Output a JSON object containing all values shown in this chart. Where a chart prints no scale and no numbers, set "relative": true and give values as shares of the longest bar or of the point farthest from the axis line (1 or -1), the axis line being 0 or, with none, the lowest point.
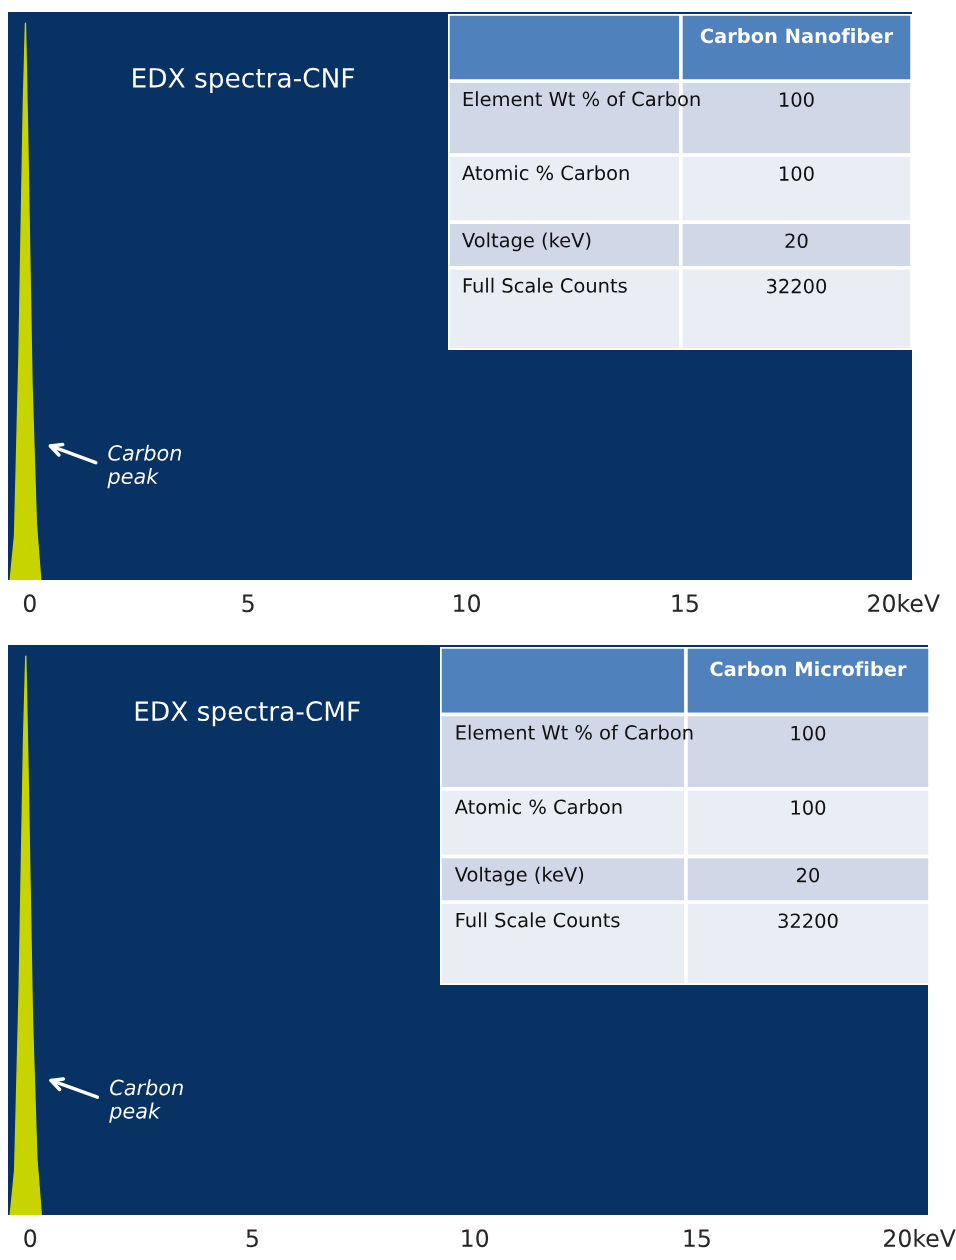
{
  "chart_data": [
    {
      "type": "area",
      "title": "EDX spectra-CNF",
      "relative": true,
      "tick_labels": "x",
      "grid": false,
      "xlim": [
        -0.5,
        20.2
      ],
      "xticks": [
        0,
        5,
        10,
        15,
        {
          "value": 20,
          "label": "20keV"
        }
      ],
      "series": [
        {
          "color": "#c8d400",
          "x": [
            -0.45,
            -0.35,
            -0.25,
            -0.15,
            -0.1,
            -0.05,
            0.05,
            0.15,
            0.25
          ],
          "values": [
            0,
            0.08,
            0.4,
            0.85,
            1,
            0.8,
            0.35,
            0.1,
            0
          ]
        }
      ],
      "annotations": [
        "Carbon\npeak"
      ]
    },
    {
      "type": "other",
      "annotations": [
        "Carbon Nanofiber",
        "Element Wt % of Carbon",
        "100",
        "Atomic % Carbon",
        "100",
        "Voltage (keV)",
        "20",
        "Full Scale Counts",
        "32200"
      ]
    },
    {
      "type": "area",
      "title": "EDX spectra-CMF",
      "relative": true,
      "tick_labels": "x",
      "grid": false,
      "xlim": [
        -0.5,
        20.2
      ],
      "xticks": [
        0,
        5,
        10,
        15,
        {
          "value": 20,
          "label": "20keV"
        }
      ],
      "series": [
        {
          "color": "#c8d400",
          "x": [
            -0.45,
            -0.35,
            -0.25,
            -0.15,
            -0.1,
            -0.05,
            0.05,
            0.15,
            0.25
          ],
          "values": [
            0,
            0.08,
            0.4,
            0.85,
            1,
            0.8,
            0.35,
            0.1,
            0
          ]
        }
      ],
      "annotations": [
        "Carbon\npeak"
      ]
    },
    {
      "type": "other",
      "annotations": [
        "Carbon Microfiber",
        "Element Wt % of Carbon",
        "100",
        "Atomic % Carbon",
        "100",
        "Voltage (keV)",
        "20",
        "Full Scale Counts",
        "32200"
      ]
    }
  ]
}
